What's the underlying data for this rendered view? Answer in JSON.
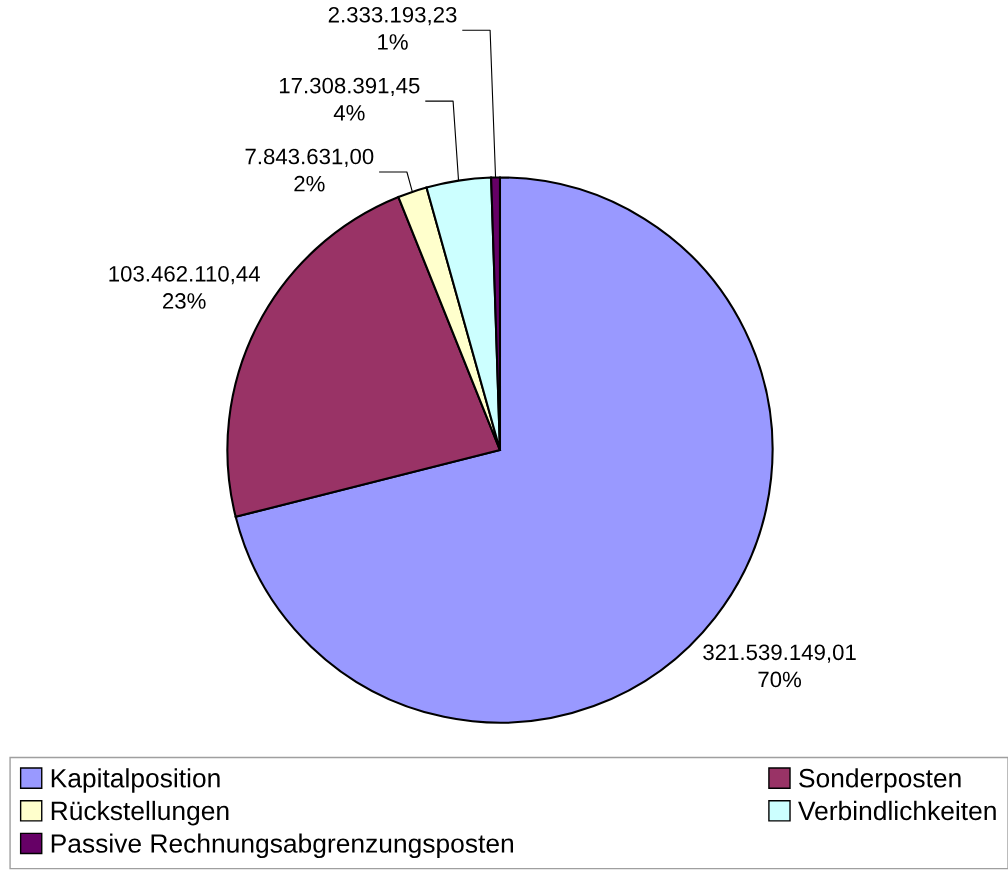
{
  "chart_data": {
    "type": "pie",
    "categories": [
      "Kapitalposition",
      "Sonderposten",
      "Rückstellungen",
      "Verbindlichkeiten",
      "Passive Rechnungsabgrenzungsposten"
    ],
    "values": [
      321539149.01,
      103462110.44,
      7843631.0,
      17308391.45,
      2333193.23
    ],
    "value_labels": [
      "321.539.149,01\n70%",
      "103.462.110,44\n23%",
      "7.843.631,00\n2%",
      "17.308.391,45\n4%",
      "2.333.193,23\n1%"
    ],
    "colors": [
      "#9999ff",
      "#993366",
      "#ffffcc",
      "#ccffff",
      "#660066"
    ],
    "legend": "bottom"
  }
}
